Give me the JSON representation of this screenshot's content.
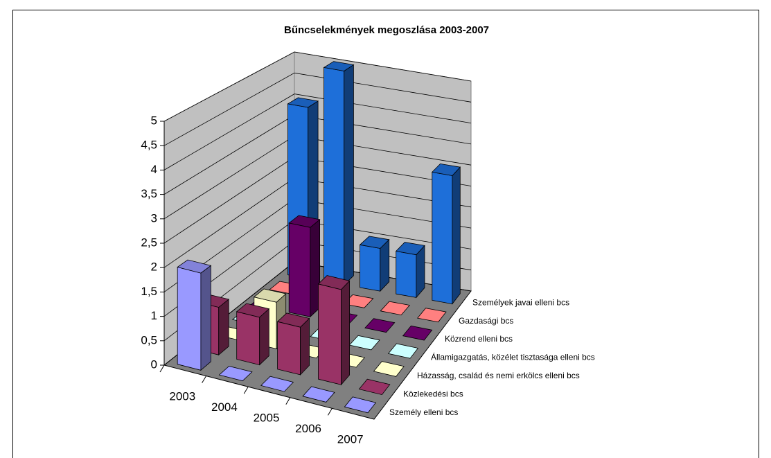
{
  "chart_data": {
    "type": "bar3d",
    "title": "Bűncselekmények megoszlása 2003-2007",
    "categories": [
      "2003",
      "2004",
      "2005",
      "2006",
      "2007"
    ],
    "series": [
      {
        "name": "Személy elleni bcs",
        "color": "#9999FF",
        "values": [
          2,
          0,
          0,
          0,
          0
        ]
      },
      {
        "name": "Közlekedési bcs",
        "color": "#993366",
        "values": [
          1,
          1,
          1,
          2,
          0
        ]
      },
      {
        "name": "Házasság, család és nemi erkölcs elleni bcs",
        "color": "#FFFFCC",
        "values": [
          0,
          1,
          0,
          0,
          0
        ]
      },
      {
        "name": "Államigazgatás, közélet tisztasága elleni bcs",
        "color": "#CCFFFF",
        "values": [
          0,
          0,
          0,
          0,
          0
        ]
      },
      {
        "name": "Közrend elleni bcs",
        "color": "#660066",
        "values": [
          0,
          2,
          0,
          0,
          0
        ]
      },
      {
        "name": "Gazdasági bcs",
        "color": "#FF8080",
        "values": [
          0,
          0,
          0,
          0,
          0
        ]
      },
      {
        "name": "Személyek javai elleni bcs",
        "color": "#1E6FD9",
        "values": [
          4,
          5,
          1,
          1,
          3
        ]
      }
    ],
    "ylim": [
      0,
      5
    ],
    "yticks": [
      0,
      {
        "value": 0.5,
        "label": "0,5"
      },
      1,
      {
        "value": 1.5,
        "label": "1,5"
      },
      2,
      {
        "value": 2.5,
        "label": "2,5"
      },
      3,
      {
        "value": 3.5,
        "label": "3,5"
      },
      4,
      {
        "value": 4.5,
        "label": "4,5"
      },
      5
    ],
    "grid": true
  }
}
